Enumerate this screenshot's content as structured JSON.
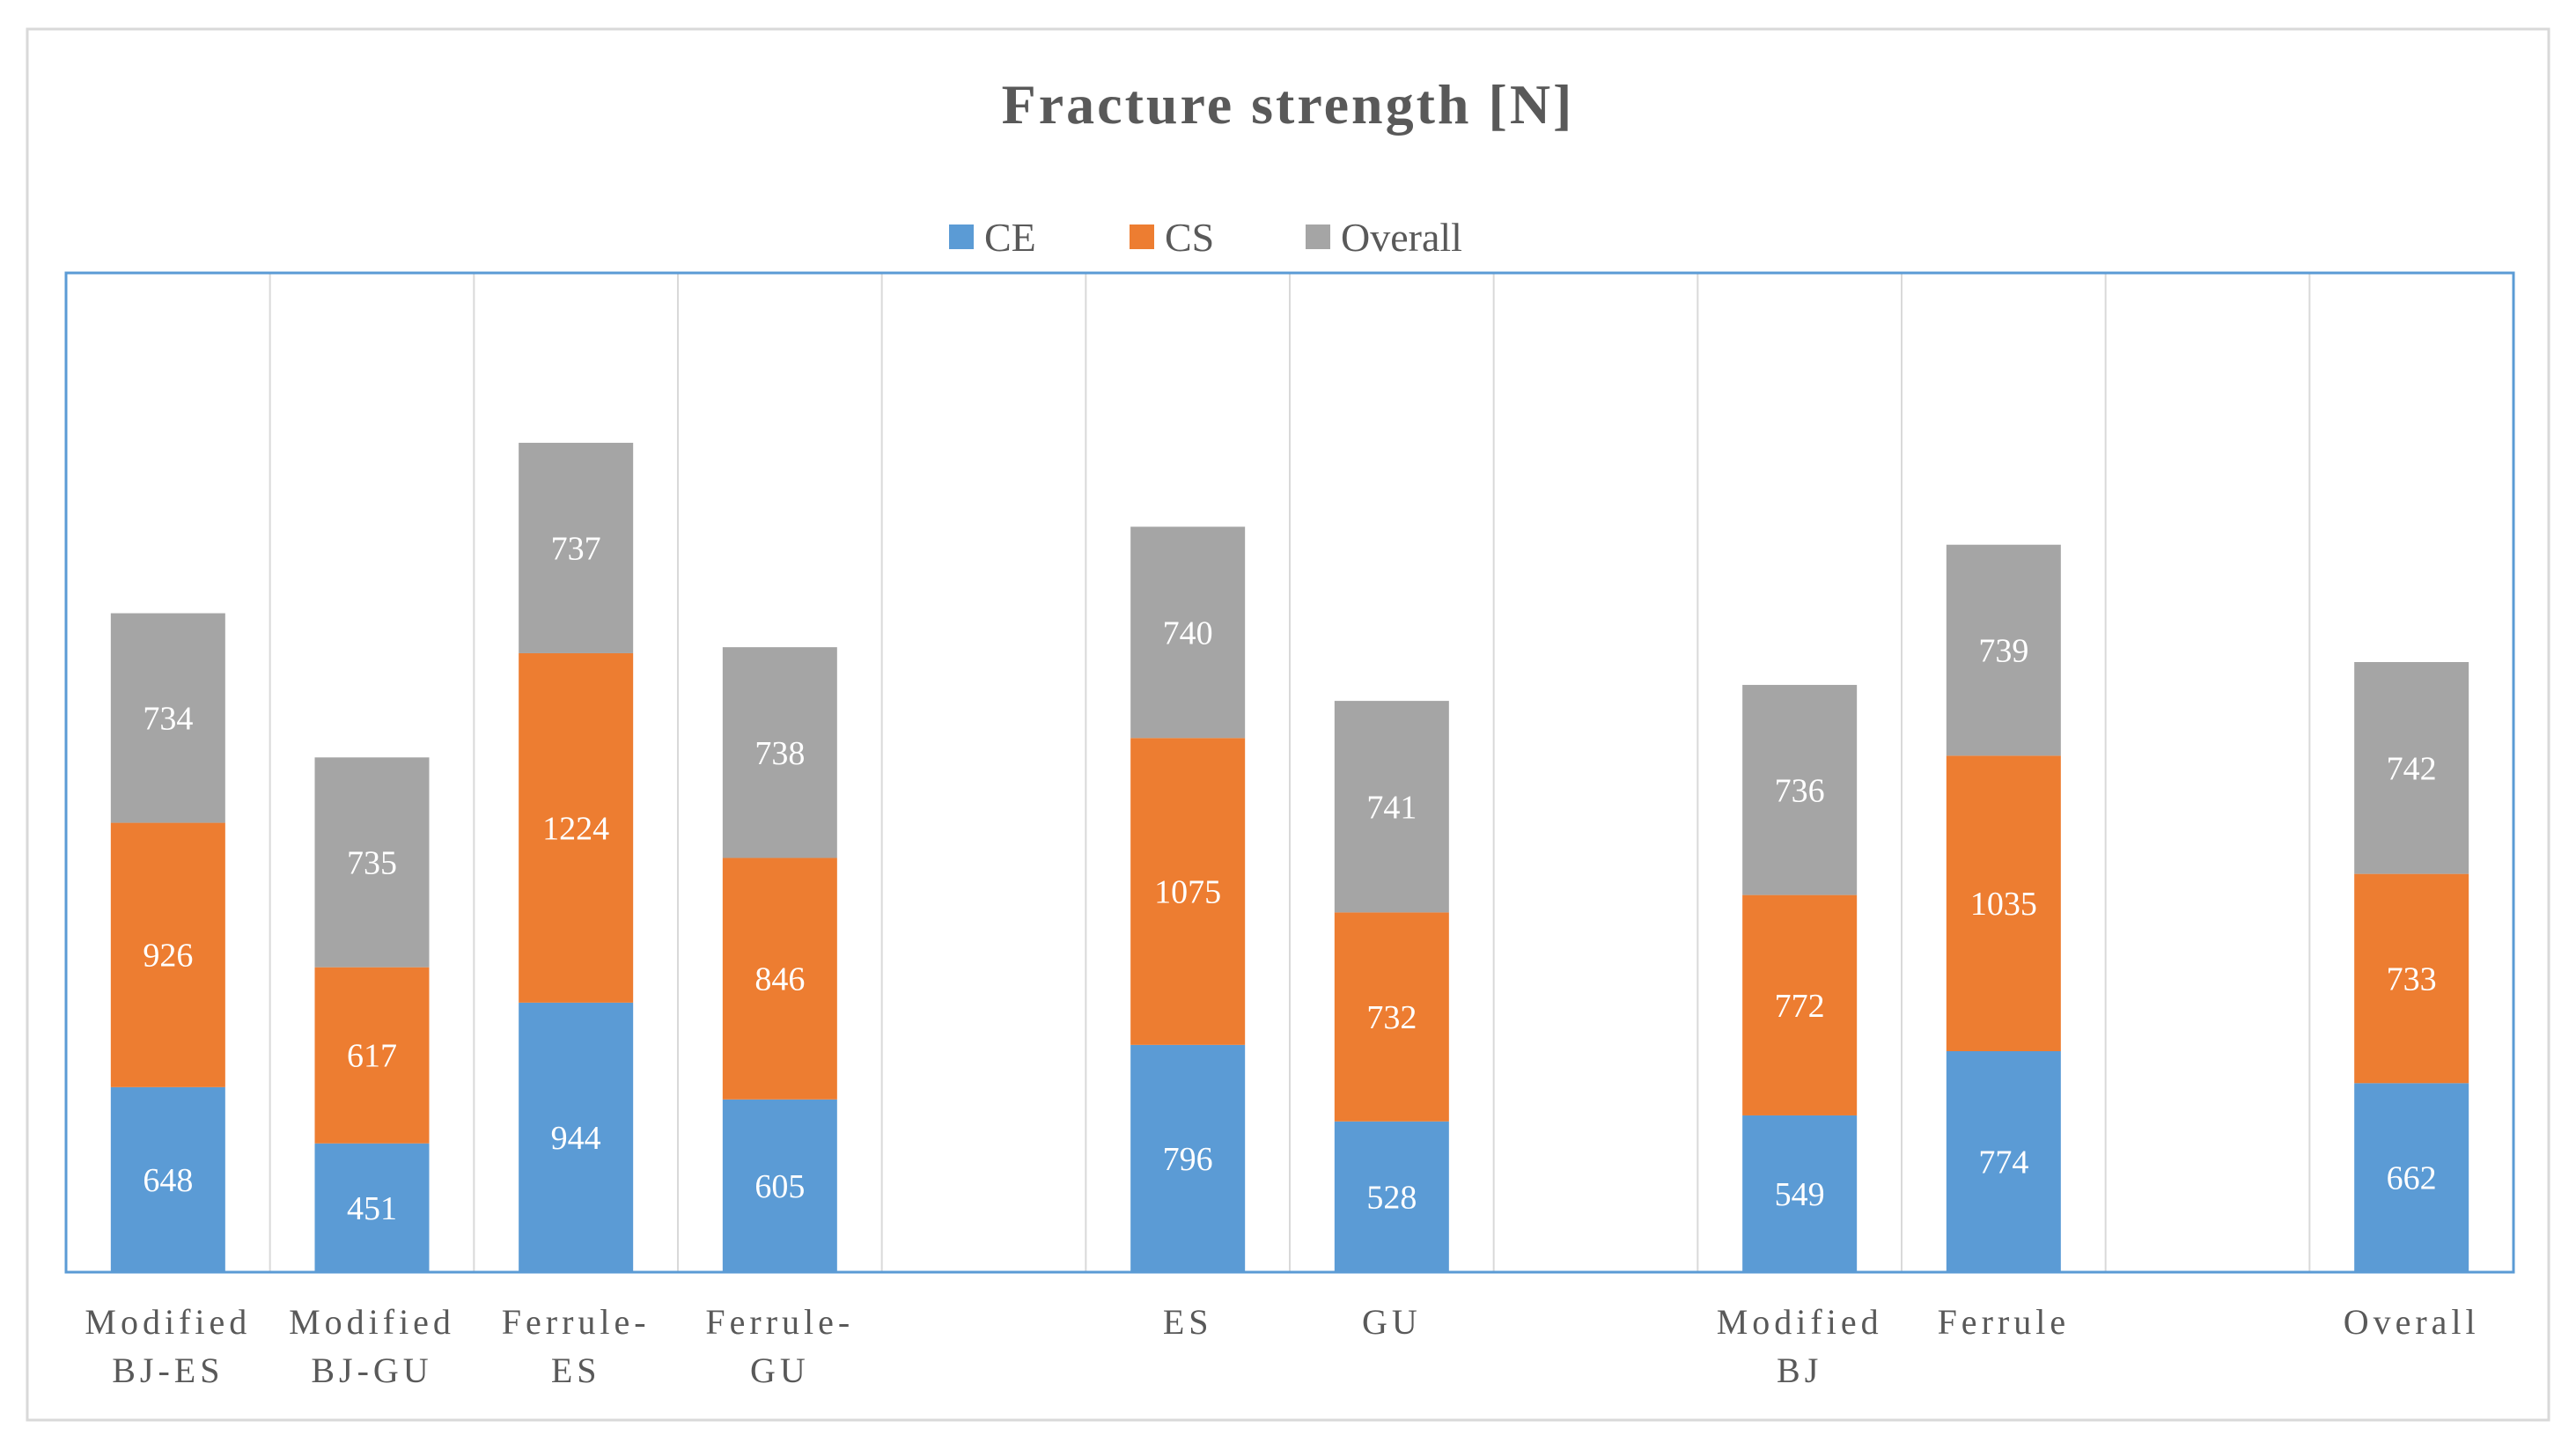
{
  "chart_data": {
    "type": "bar",
    "stacked": true,
    "title": "Fracture strength [N]",
    "xlabel": "",
    "ylabel": "",
    "grid": "vertical",
    "legend_position": "top",
    "categories": [
      [
        "Modified",
        "BJ-ES"
      ],
      [
        "Modified",
        "BJ-GU"
      ],
      [
        "Ferrule-",
        "ES"
      ],
      [
        "Ferrule-",
        "GU"
      ],
      [],
      [
        "ES"
      ],
      [
        "GU"
      ],
      [],
      [
        "Modified",
        "BJ"
      ],
      [
        "Ferrule"
      ],
      [],
      [
        "Overall"
      ]
    ],
    "series": [
      {
        "name": "CE",
        "color": "#5B9BD5",
        "values": [
          648,
          451,
          944,
          605,
          null,
          796,
          528,
          null,
          549,
          774,
          null,
          662
        ]
      },
      {
        "name": "CS",
        "color": "#ED7D31",
        "values": [
          926,
          617,
          1224,
          846,
          null,
          1075,
          732,
          null,
          772,
          1035,
          null,
          733
        ]
      },
      {
        "name": "Overall",
        "color": "#A5A5A5",
        "values": [
          734,
          735,
          737,
          738,
          null,
          740,
          741,
          null,
          736,
          739,
          null,
          742
        ]
      }
    ],
    "ylim": [
      0,
      3500
    ]
  }
}
